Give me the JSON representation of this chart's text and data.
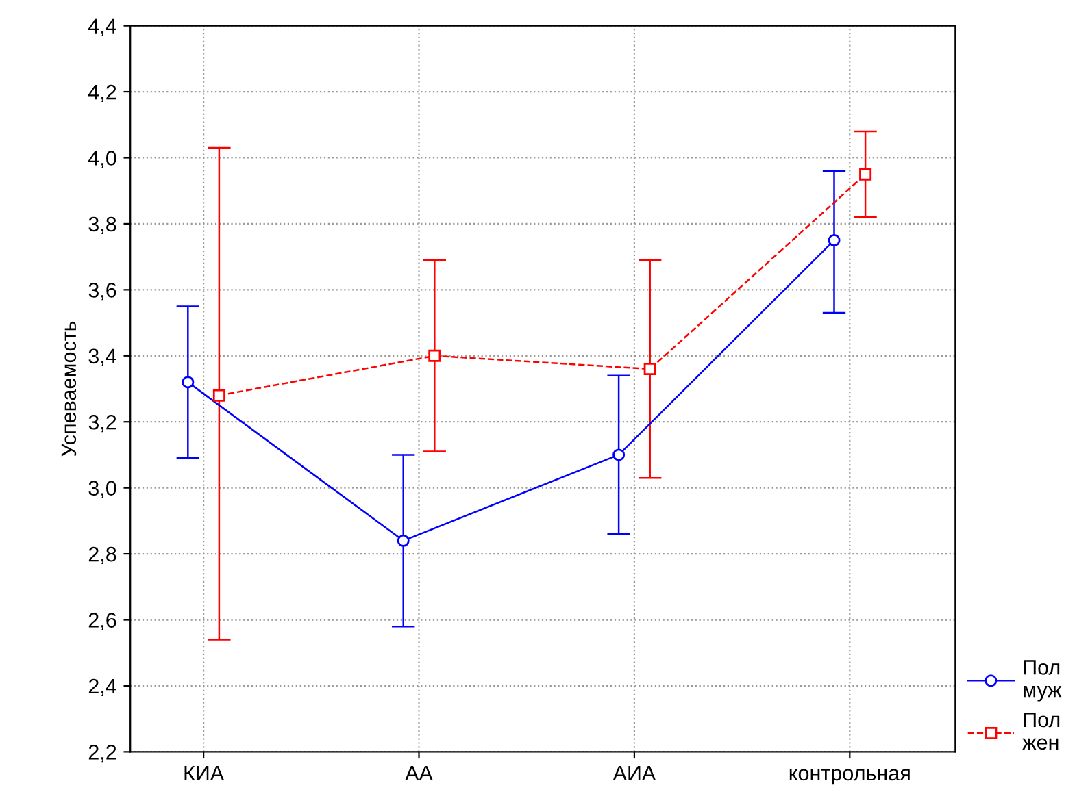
{
  "chart_data": {
    "type": "line",
    "ylabel": "Успеваемость",
    "categories": [
      "КИА",
      "АА",
      "АИА",
      "контрольная"
    ],
    "series": [
      {
        "name": "Пол\nмуж",
        "color": "#0000ff",
        "marker": "circle",
        "line_style": "solid",
        "values": [
          3.32,
          2.84,
          3.1,
          3.75
        ],
        "errors": [
          [
            3.09,
            3.55
          ],
          [
            2.58,
            3.1
          ],
          [
            2.86,
            3.34
          ],
          [
            3.53,
            3.96
          ]
        ]
      },
      {
        "name": "Пол\nжен",
        "color": "#ff0000",
        "marker": "square",
        "line_style": "dashed",
        "values": [
          3.28,
          3.4,
          3.36,
          3.95
        ],
        "errors": [
          [
            2.54,
            4.03
          ],
          [
            3.11,
            3.69
          ],
          [
            3.03,
            3.69
          ],
          [
            3.82,
            4.08
          ]
        ]
      }
    ],
    "ylim": [
      2.2,
      4.4
    ],
    "yticks": [
      {
        "value": 2.2,
        "label": "2,2"
      },
      {
        "value": 2.4,
        "label": "2,4"
      },
      {
        "value": 2.6,
        "label": "2,6"
      },
      {
        "value": 2.8,
        "label": "2,8"
      },
      {
        "value": 3.0,
        "label": "3,0"
      },
      {
        "value": 3.2,
        "label": "3,2"
      },
      {
        "value": 3.4,
        "label": "3,4"
      },
      {
        "value": 3.6,
        "label": "3,6"
      },
      {
        "value": 3.8,
        "label": "3,8"
      },
      {
        "value": 4.0,
        "label": "4,0"
      },
      {
        "value": 4.2,
        "label": "4,2"
      },
      {
        "value": 4.4,
        "label": "4,4"
      }
    ],
    "grid": true,
    "legend": "bottom right"
  }
}
